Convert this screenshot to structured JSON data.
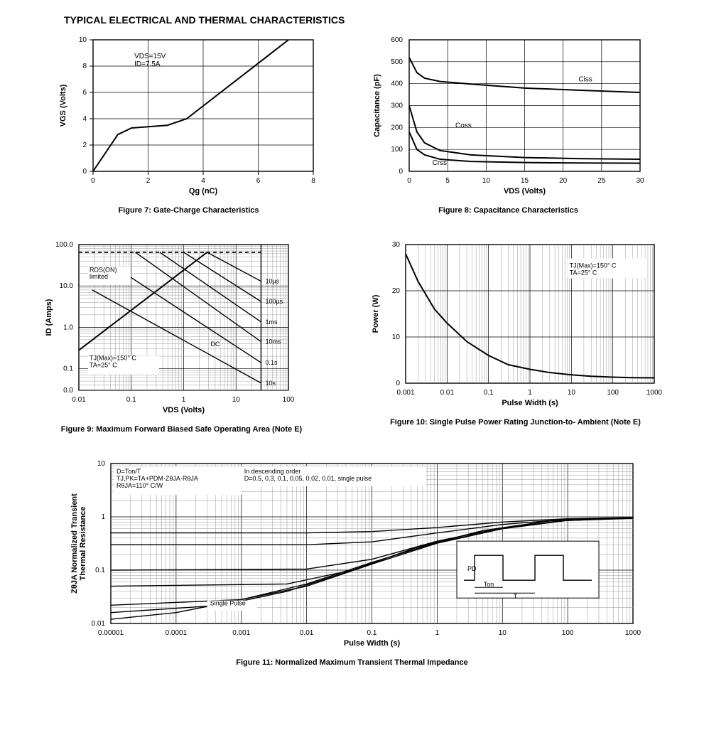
{
  "page_title": "TYPICAL ELECTRICAL AND THERMAL CHARACTERISTICS",
  "colors": {
    "bg": "#ffffff",
    "ink": "#000000",
    "grid": "#000000",
    "minor": "#999999"
  },
  "fig7": {
    "type": "line",
    "caption": "Figure 7: Gate-Charge Characteristics",
    "xlabel": "Qg (nC)",
    "ylabel": "VGS (Volts)",
    "xlim": [
      0,
      8
    ],
    "xtick_step": 2,
    "ylim": [
      0,
      10
    ],
    "ytick_step": 2,
    "annotation": "VDS=15V\nID=7.5A",
    "series": [
      {
        "points": [
          [
            0,
            0
          ],
          [
            0.9,
            2.8
          ],
          [
            1.4,
            3.3
          ],
          [
            2.7,
            3.5
          ],
          [
            3.4,
            4.0
          ],
          [
            7.1,
            10
          ]
        ]
      }
    ],
    "line_width": 2
  },
  "fig8": {
    "type": "line",
    "caption": "Figure 8: Capacitance Characteristics",
    "xlabel": "VDS (Volts)",
    "ylabel": "Capacitance (pF)",
    "xlim": [
      0,
      30
    ],
    "xtick_step": 5,
    "ylim": [
      0,
      600
    ],
    "ytick_step": 100,
    "labels": {
      "Ciss": [
        22,
        410
      ],
      "Coss": [
        6,
        200
      ],
      "Crss": [
        3,
        30
      ]
    },
    "series": [
      {
        "name": "Ciss",
        "points": [
          [
            0,
            520
          ],
          [
            1,
            450
          ],
          [
            2,
            425
          ],
          [
            4,
            410
          ],
          [
            8,
            398
          ],
          [
            15,
            380
          ],
          [
            22,
            370
          ],
          [
            30,
            360
          ]
        ]
      },
      {
        "name": "Coss",
        "points": [
          [
            0,
            300
          ],
          [
            1,
            180
          ],
          [
            2,
            130
          ],
          [
            4,
            95
          ],
          [
            8,
            75
          ],
          [
            15,
            63
          ],
          [
            22,
            58
          ],
          [
            30,
            55
          ]
        ]
      },
      {
        "name": "Crss",
        "points": [
          [
            0,
            180
          ],
          [
            1,
            100
          ],
          [
            2,
            75
          ],
          [
            4,
            55
          ],
          [
            8,
            45
          ],
          [
            15,
            40
          ],
          [
            22,
            38
          ],
          [
            30,
            37
          ]
        ]
      }
    ],
    "line_width": 2
  },
  "fig9": {
    "type": "loglog-soa",
    "caption": "Figure 9: Maximum Forward Biased Safe\nOperating Area (Note E)",
    "xlabel": "VDS (Volts)",
    "ylabel": "ID (Amps)",
    "xrange": [
      0.01,
      100
    ],
    "xticks": [
      0.01,
      0.1,
      1,
      10,
      100
    ],
    "yrange": [
      0.0,
      100.0
    ],
    "yticks": [
      0.0,
      0.1,
      1.0,
      10.0,
      100.0
    ],
    "yticklabels": [
      "0.0",
      "0.1",
      "1.0",
      "10.0",
      "100.0"
    ],
    "annot1": "RDS(ON)\nlimited",
    "annot2": "TJ(Max)=150° C\nTA=25° C",
    "right_labels": [
      "10µs",
      "100µs",
      "1ms",
      "10ms",
      "0.1s",
      "10s"
    ],
    "dc_label": "DC",
    "dc_limit": 65,
    "vds_clip": 30,
    "rds_line": [
      [
        0.01,
        0.28
      ],
      [
        2.8,
        65
      ]
    ],
    "soa_lines": [
      [
        [
          2.8,
          65
        ],
        [
          30,
          13
        ]
      ],
      [
        [
          1.0,
          65
        ],
        [
          30,
          4.2
        ]
      ],
      [
        [
          0.35,
          65
        ],
        [
          30,
          1.35
        ]
      ],
      [
        [
          0.12,
          65
        ],
        [
          30,
          0.45
        ]
      ],
      [
        [
          0.055,
          26
        ],
        [
          30,
          0.14
        ]
      ],
      [
        [
          0.018,
          8
        ],
        [
          30,
          0.045
        ]
      ]
    ],
    "line_width": 1.6
  },
  "fig10": {
    "type": "semilogx",
    "caption": "Figure 10: Single Pulse Power Rating Junction-to-\nAmbient (Note E)",
    "xlabel": "Pulse Width (s)",
    "ylabel": "Power (W)",
    "xrange": [
      0.001,
      1000
    ],
    "xticks": [
      0.001,
      0.01,
      0.1,
      1,
      10,
      100,
      1000
    ],
    "ylim": [
      0,
      30
    ],
    "ytick_step": 10,
    "annotation": "TJ(Max)=150° C\nTA=25° C",
    "series": [
      {
        "points": [
          [
            0.001,
            28
          ],
          [
            0.002,
            22
          ],
          [
            0.005,
            16
          ],
          [
            0.01,
            13
          ],
          [
            0.03,
            9
          ],
          [
            0.1,
            6
          ],
          [
            0.3,
            4
          ],
          [
            1,
            3
          ],
          [
            3,
            2.3
          ],
          [
            10,
            1.8
          ],
          [
            30,
            1.5
          ],
          [
            100,
            1.3
          ],
          [
            300,
            1.2
          ],
          [
            1000,
            1.15
          ]
        ]
      }
    ],
    "line_width": 2
  },
  "fig11": {
    "type": "loglog",
    "caption": "Figure 11: Normalized Maximum Transient Thermal Impedance",
    "xlabel": "Pulse Width (s)",
    "ylabel": "ZθJA Normalized Transient\nThermal Resistance",
    "xrange": [
      1e-05,
      1000
    ],
    "xticks": [
      1e-05,
      0.0001,
      0.001,
      0.01,
      0.1,
      1,
      10,
      100,
      1000
    ],
    "yrange": [
      0.01,
      10
    ],
    "yticks": [
      0.01,
      0.1,
      1,
      10
    ],
    "annot1": "D=Ton/T\nTJ,PK=TA+PDM·ZθJA·RθJA\nRθJA=110° C/W",
    "annot2": "In descending order\nD=0.5, 0.3, 0.1, 0.05, 0.02, 0.01, single pulse",
    "sp_label": "Single Pulse",
    "inset": {
      "pd": "PD",
      "ton": "Ton",
      "T": "T"
    },
    "series": [
      {
        "d": "0.5",
        "pts": [
          [
            1e-05,
            0.5
          ],
          [
            0.01,
            0.5
          ],
          [
            0.1,
            0.53
          ],
          [
            1,
            0.63
          ],
          [
            10,
            0.8
          ],
          [
            100,
            0.92
          ],
          [
            1000,
            0.97
          ]
        ]
      },
      {
        "d": "0.3",
        "pts": [
          [
            1e-05,
            0.3
          ],
          [
            0.01,
            0.3
          ],
          [
            0.1,
            0.34
          ],
          [
            1,
            0.5
          ],
          [
            10,
            0.72
          ],
          [
            100,
            0.9
          ],
          [
            1000,
            0.96
          ]
        ]
      },
      {
        "d": "0.1",
        "pts": [
          [
            1e-05,
            0.1
          ],
          [
            0.01,
            0.105
          ],
          [
            0.1,
            0.16
          ],
          [
            1,
            0.35
          ],
          [
            10,
            0.62
          ],
          [
            100,
            0.86
          ],
          [
            1000,
            0.95
          ]
        ]
      },
      {
        "d": "0.05",
        "pts": [
          [
            1e-05,
            0.05
          ],
          [
            0.005,
            0.055
          ],
          [
            0.05,
            0.1
          ],
          [
            0.5,
            0.27
          ],
          [
            5,
            0.55
          ],
          [
            50,
            0.83
          ],
          [
            1000,
            0.94
          ]
        ]
      },
      {
        "d": "0.02",
        "pts": [
          [
            1e-05,
            0.022
          ],
          [
            0.001,
            0.028
          ],
          [
            0.01,
            0.05
          ],
          [
            0.1,
            0.13
          ],
          [
            1,
            0.32
          ],
          [
            10,
            0.6
          ],
          [
            100,
            0.86
          ],
          [
            1000,
            0.95
          ]
        ]
      },
      {
        "d": "0.01",
        "pts": [
          [
            1e-05,
            0.016
          ],
          [
            0.0005,
            0.022
          ],
          [
            0.005,
            0.04
          ],
          [
            0.05,
            0.1
          ],
          [
            0.5,
            0.27
          ],
          [
            5,
            0.55
          ],
          [
            50,
            0.83
          ],
          [
            1000,
            0.94
          ]
        ]
      },
      {
        "d": "sp",
        "pts": [
          [
            1e-05,
            0.012
          ],
          [
            0.0001,
            0.016
          ],
          [
            0.001,
            0.028
          ],
          [
            0.01,
            0.055
          ],
          [
            0.1,
            0.14
          ],
          [
            1,
            0.33
          ],
          [
            10,
            0.6
          ],
          [
            100,
            0.86
          ],
          [
            1000,
            0.95
          ]
        ]
      }
    ],
    "line_width": 1.8
  }
}
